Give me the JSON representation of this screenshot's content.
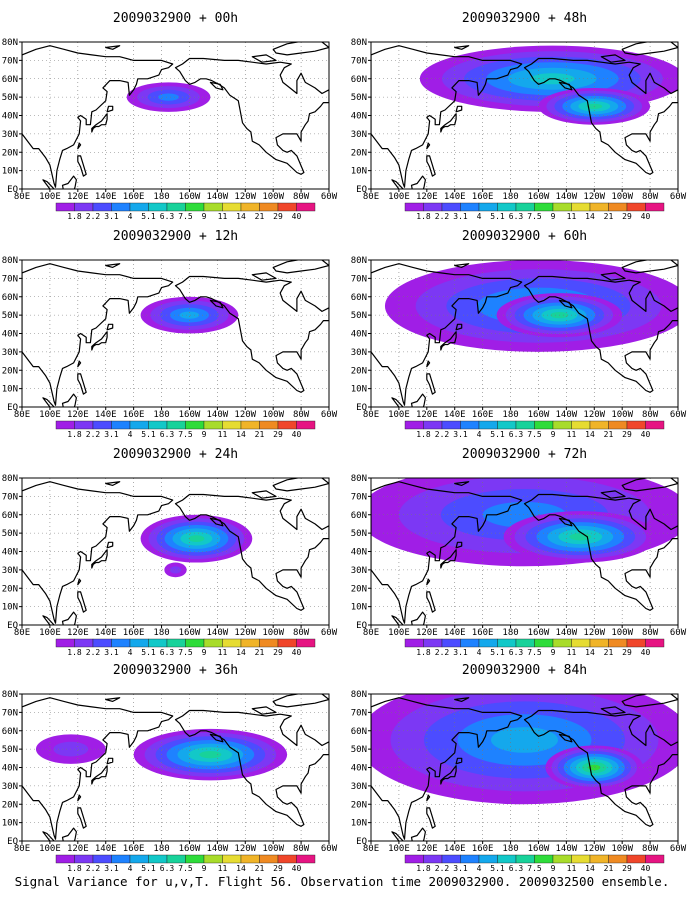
{
  "caption": "Signal Variance for u,v,T. Flight 56. Observation time 2009032900. 2009032500 ensemble.",
  "colorbar": {
    "labels": [
      "1.8",
      "2.2",
      "3.1",
      "4",
      "5.1",
      "6.3",
      "7.5",
      "9",
      "11",
      "14",
      "21",
      "29",
      "40"
    ],
    "colors": [
      "#a01ee6",
      "#7c38f4",
      "#4c4cff",
      "#1e82ff",
      "#14a8ec",
      "#12c8c8",
      "#18d29a",
      "#2edc3a",
      "#a8dc2a",
      "#e6dc32",
      "#f0b428",
      "#ef8a22",
      "#f0462a",
      "#e61482"
    ]
  },
  "axes": {
    "x_ticks": [
      "80E",
      "100E",
      "120E",
      "140E",
      "160E",
      "180",
      "160W",
      "140W",
      "120W",
      "100W",
      "80W",
      "60W"
    ],
    "y_ticks": [
      "EQ",
      "10N",
      "20N",
      "30N",
      "40N",
      "50N",
      "60N",
      "70N",
      "80N"
    ],
    "lon_range": [
      80,
      300
    ],
    "lat_range": [
      0,
      80
    ],
    "grid": true
  },
  "chart_data": [
    {
      "type": "heatmap",
      "title": "2009032900 + 00h",
      "forecast_hour": 0,
      "max_level": "5.1",
      "blobs": [
        {
          "lon": 185,
          "lat": 50,
          "rlon": 30,
          "rlat": 8,
          "peak": 3
        }
      ]
    },
    {
      "type": "heatmap",
      "title": "2009032900 + 12h",
      "forecast_hour": 12,
      "max_level": "6.3",
      "blobs": [
        {
          "lon": 200,
          "lat": 50,
          "rlon": 35,
          "rlat": 10,
          "peak": 4
        }
      ]
    },
    {
      "type": "heatmap",
      "title": "2009032900 + 24h",
      "forecast_hour": 24,
      "max_level": "9",
      "blobs": [
        {
          "lon": 205,
          "lat": 47,
          "rlon": 40,
          "rlat": 13,
          "peak": 6
        },
        {
          "lon": 190,
          "lat": 30,
          "rlon": 8,
          "rlat": 4,
          "peak": 1
        }
      ]
    },
    {
      "type": "heatmap",
      "title": "2009032900 + 36h",
      "forecast_hour": 36,
      "max_level": "9",
      "blobs": [
        {
          "lon": 215,
          "lat": 47,
          "rlon": 55,
          "rlat": 14,
          "peak": 6
        },
        {
          "lon": 115,
          "lat": 50,
          "rlon": 25,
          "rlat": 8,
          "peak": 1
        }
      ]
    },
    {
      "type": "heatmap",
      "title": "2009032900 + 48h",
      "forecast_hour": 48,
      "max_level": "9",
      "blobs": [
        {
          "lon": 210,
          "lat": 60,
          "rlon": 95,
          "rlat": 18,
          "peak": 5
        },
        {
          "lon": 240,
          "lat": 45,
          "rlon": 40,
          "rlat": 10,
          "peak": 6
        }
      ]
    },
    {
      "type": "heatmap",
      "title": "2009032900 + 60h",
      "forecast_hour": 60,
      "max_level": "9",
      "blobs": [
        {
          "lon": 200,
          "lat": 55,
          "rlon": 110,
          "rlat": 25,
          "peak": 4
        },
        {
          "lon": 215,
          "lat": 50,
          "rlon": 45,
          "rlat": 12,
          "peak": 6
        }
      ]
    },
    {
      "type": "heatmap",
      "title": "2009032900 + 72h",
      "forecast_hour": 72,
      "max_level": "9",
      "blobs": [
        {
          "lon": 190,
          "lat": 60,
          "rlon": 120,
          "rlat": 28,
          "peak": 3
        },
        {
          "lon": 230,
          "lat": 48,
          "rlon": 55,
          "rlat": 14,
          "peak": 6
        }
      ]
    },
    {
      "type": "heatmap",
      "title": "2009032900 + 84h",
      "forecast_hour": 84,
      "max_level": "11",
      "blobs": [
        {
          "lon": 190,
          "lat": 55,
          "rlon": 120,
          "rlat": 35,
          "peak": 4
        },
        {
          "lon": 240,
          "lat": 40,
          "rlon": 35,
          "rlat": 12,
          "peak": 7
        }
      ]
    }
  ]
}
